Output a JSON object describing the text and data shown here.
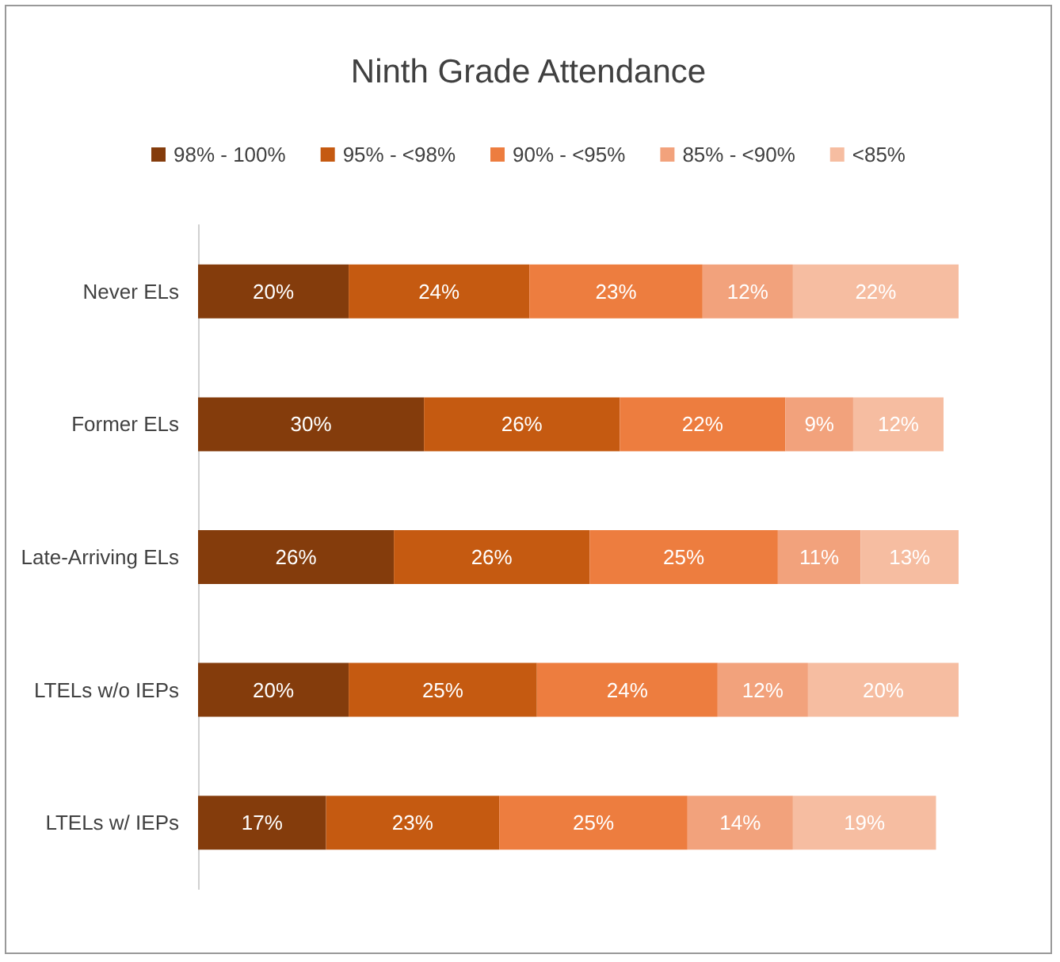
{
  "chart_data": {
    "type": "bar",
    "title": "Ninth Grade Attendance",
    "orientation": "horizontal",
    "stacked": true,
    "tick_labels": "y",
    "legend": "top",
    "categories": [
      "Never ELs",
      "Former ELs",
      "Late-Arriving ELs",
      "LTELs w/o IEPs",
      "LTELs w/ IEPs"
    ],
    "series": [
      {
        "name": "98% - 100%",
        "color": "#843c0c",
        "values": [
          20,
          30,
          26,
          20,
          17
        ],
        "value_labels": [
          "20%",
          "30%",
          "26%",
          "20%",
          "17%"
        ]
      },
      {
        "name": "95% - <98%",
        "color": "#c55a11",
        "values": [
          24,
          26,
          26,
          25,
          23
        ],
        "value_labels": [
          "24%",
          "26%",
          "26%",
          "25%",
          "23%"
        ]
      },
      {
        "name": "90% - <95%",
        "color": "#ed7d3f",
        "values": [
          23,
          22,
          25,
          24,
          25
        ],
        "value_labels": [
          "23%",
          "22%",
          "25%",
          "24%",
          "25%"
        ]
      },
      {
        "name": "85% - <90%",
        "color": "#f2a27c",
        "values": [
          12,
          9,
          11,
          12,
          14
        ],
        "value_labels": [
          "12%",
          "9%",
          "11%",
          "12%",
          "14%"
        ]
      },
      {
        "name": "<85%",
        "color": "#f6bda1",
        "values": [
          22,
          12,
          13,
          20,
          19
        ],
        "value_labels": [
          "22%",
          "12%",
          "13%",
          "20%",
          "19%"
        ]
      }
    ]
  }
}
